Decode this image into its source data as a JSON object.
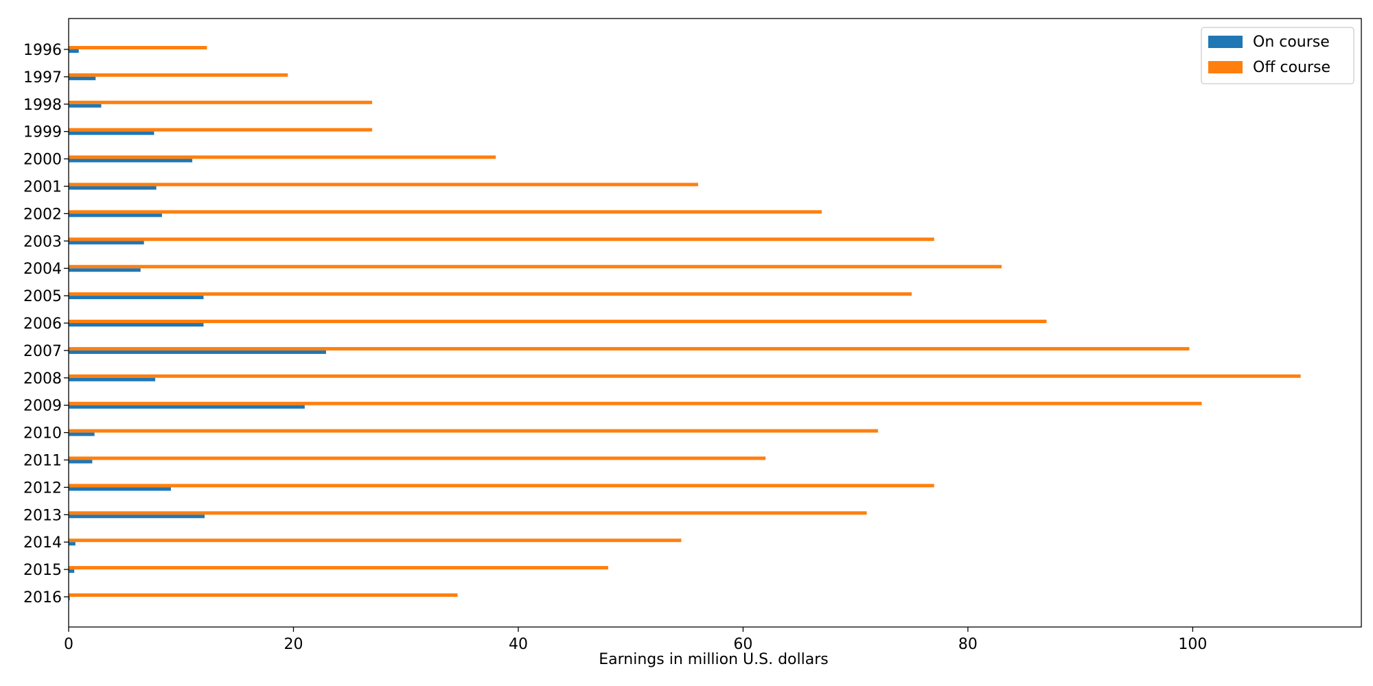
{
  "chart_data": {
    "type": "bar",
    "orientation": "horizontal",
    "title": "",
    "xlabel": "Earnings in million U.S. dollars",
    "ylabel": "",
    "xlim": [
      0,
      115
    ],
    "xticks": [
      0,
      20,
      40,
      60,
      80,
      100
    ],
    "grid": false,
    "legend_position": "top-right",
    "categories": [
      "1996",
      "1997",
      "1998",
      "1999",
      "2000",
      "2001",
      "2002",
      "2003",
      "2004",
      "2005",
      "2006",
      "2007",
      "2008",
      "2009",
      "2010",
      "2011",
      "2012",
      "2013",
      "2014",
      "2015",
      "2016"
    ],
    "series": [
      {
        "name": "On course",
        "color": "#1f77b4",
        "values": [
          0.9,
          2.4,
          2.9,
          7.6,
          11.0,
          7.8,
          8.3,
          6.7,
          6.4,
          12.0,
          12.0,
          22.9,
          7.7,
          21.0,
          2.3,
          2.1,
          9.1,
          12.1,
          0.6,
          0.5,
          0.1
        ]
      },
      {
        "name": "Off course",
        "color": "#ff7f0e",
        "values": [
          12.3,
          19.5,
          27.0,
          27.0,
          38.0,
          56.0,
          67.0,
          77.0,
          83.0,
          75.0,
          87.0,
          99.7,
          109.6,
          100.8,
          72.0,
          62.0,
          77.0,
          71.0,
          54.5,
          48.0,
          34.6
        ]
      }
    ]
  }
}
